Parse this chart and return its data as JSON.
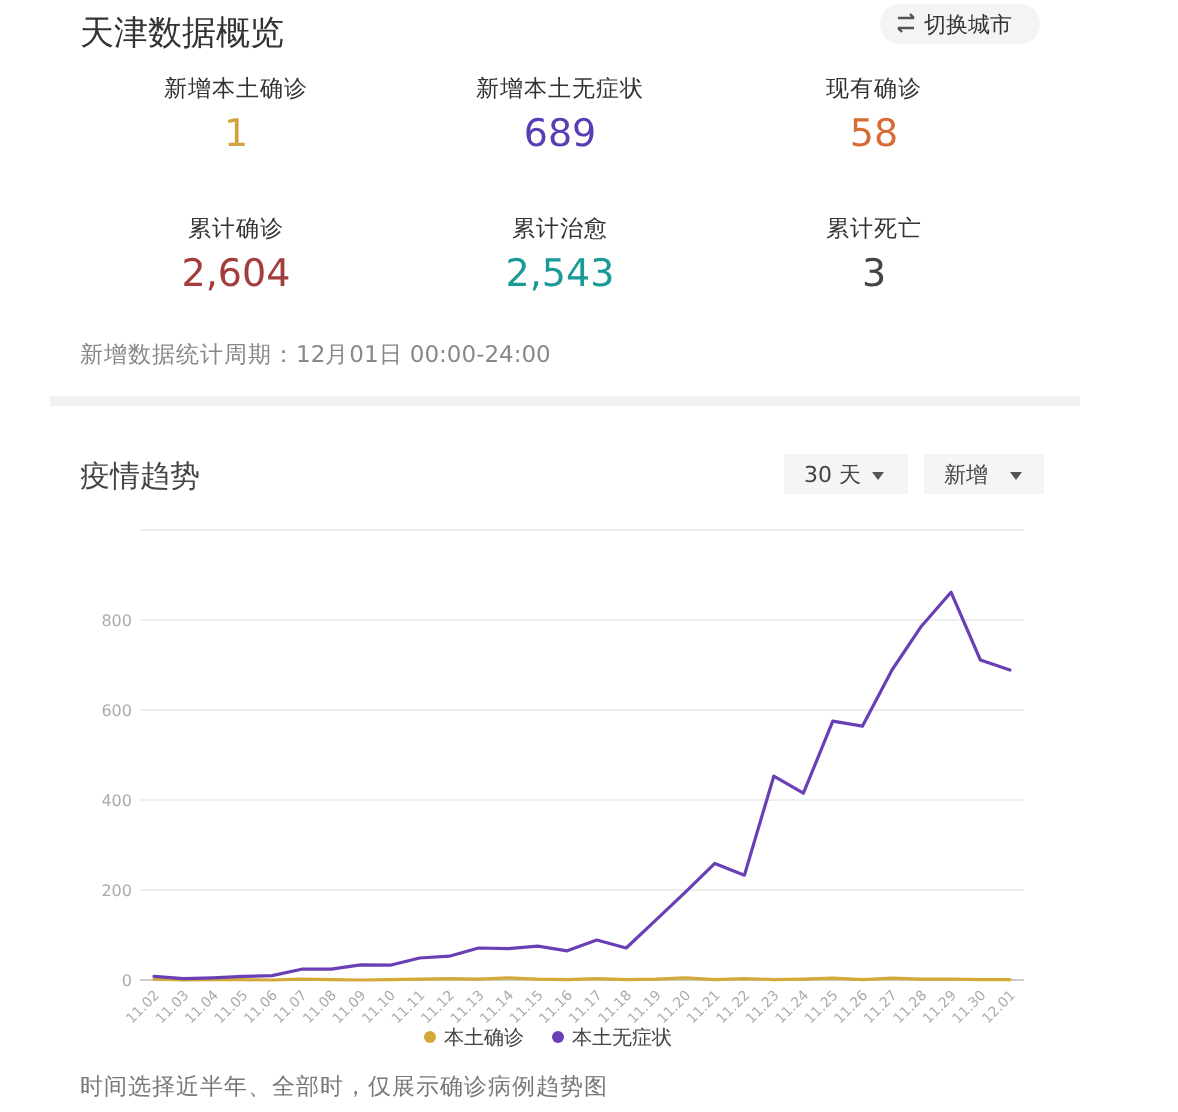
{
  "chart_data": [
    {
      "type": "other",
      "title": "天津数据概览",
      "categories": [
        "新增本土确诊",
        "新增本土无症状",
        "现有确诊",
        "累计确诊",
        "累计治愈",
        "累计死亡"
      ],
      "value_labels": [
        "1",
        "689",
        "58",
        "2,604",
        "2,543",
        "3"
      ],
      "colors": [
        "#d4a23c",
        "#5a3db3",
        "#d86b35",
        "#a53c3c",
        "#1a9a96",
        "#444444"
      ],
      "annotations": [
        "切换城市",
        "新增数据统计周期：12月01日 00:00-24:00"
      ]
    },
    {
      "type": "line",
      "title": "疫情趋势",
      "categories": [
        "11.02",
        "11.03",
        "11.04",
        "11.05",
        "11.06",
        "11.07",
        "11.08",
        "11.09",
        "11.10",
        "11.11",
        "11.12",
        "11.13",
        "11.14",
        "11.15",
        "11.16",
        "11.17",
        "11.18",
        "11.19",
        "11.20",
        "11.21",
        "11.22",
        "11.23",
        "11.24",
        "11.25",
        "11.26",
        "11.27",
        "11.28",
        "11.29",
        "11.30",
        "12.01"
      ],
      "series": [
        {
          "name": "本土确诊",
          "color": "#d4a93a",
          "values": [
            2,
            0,
            1,
            1,
            0,
            2,
            1,
            0,
            1,
            2,
            3,
            2,
            5,
            2,
            1,
            3,
            1,
            2,
            5,
            1,
            3,
            1,
            2,
            4,
            1,
            4,
            2,
            2,
            1,
            1
          ]
        },
        {
          "name": "本土无症状",
          "color": "#6a3fb5",
          "values": [
            8,
            3,
            5,
            8,
            10,
            24,
            24,
            34,
            33,
            49,
            53,
            71,
            70,
            75,
            65,
            89,
            71,
            133,
            195,
            259,
            233,
            453,
            415,
            575,
            564,
            689,
            786,
            862,
            711,
            689
          ]
        }
      ],
      "ylim": [
        0,
        1000
      ],
      "yticks": [
        0,
        200,
        400,
        600,
        800,
        {
          "value": 1000,
          "label": null
        }
      ],
      "grid": "y",
      "legend": "bottom",
      "marker": "none",
      "line_style": "solid",
      "annotations": [
        "30 天",
        "新增",
        "时间选择近半年、全部时，仅展示确诊病例趋势图"
      ]
    }
  ]
}
